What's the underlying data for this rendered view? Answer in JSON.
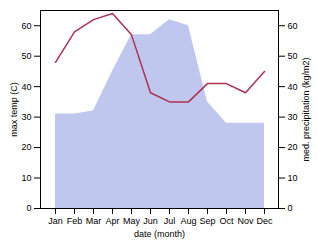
{
  "chart_data": {
    "type": "line",
    "categories": [
      "Jan",
      "Feb",
      "Mar",
      "Apr",
      "May",
      "Jun",
      "Jul",
      "Aug",
      "Sep",
      "Oct",
      "Nov",
      "Dec"
    ],
    "xlabel": "date (month)",
    "ylabel": "max temp (C)",
    "y2label": "med. precipitation (kg/m2)",
    "series": [
      {
        "type": "area",
        "color": "#aab4e8",
        "values": [
          31,
          31,
          32,
          45,
          57,
          57,
          62,
          60,
          35,
          28,
          28,
          28
        ]
      },
      {
        "type": "line",
        "color": "#b03050",
        "axis": "y2",
        "values": [
          48,
          58,
          62,
          64,
          57,
          38,
          35,
          35,
          41,
          41,
          38,
          45
        ]
      }
    ],
    "ylim": [
      0,
      65
    ],
    "yticks": [
      0,
      10,
      20,
      30,
      40,
      50,
      60
    ],
    "y2lim": [
      0,
      65
    ],
    "y2ticks": [
      0,
      10,
      20,
      30,
      40,
      50,
      60
    ]
  }
}
